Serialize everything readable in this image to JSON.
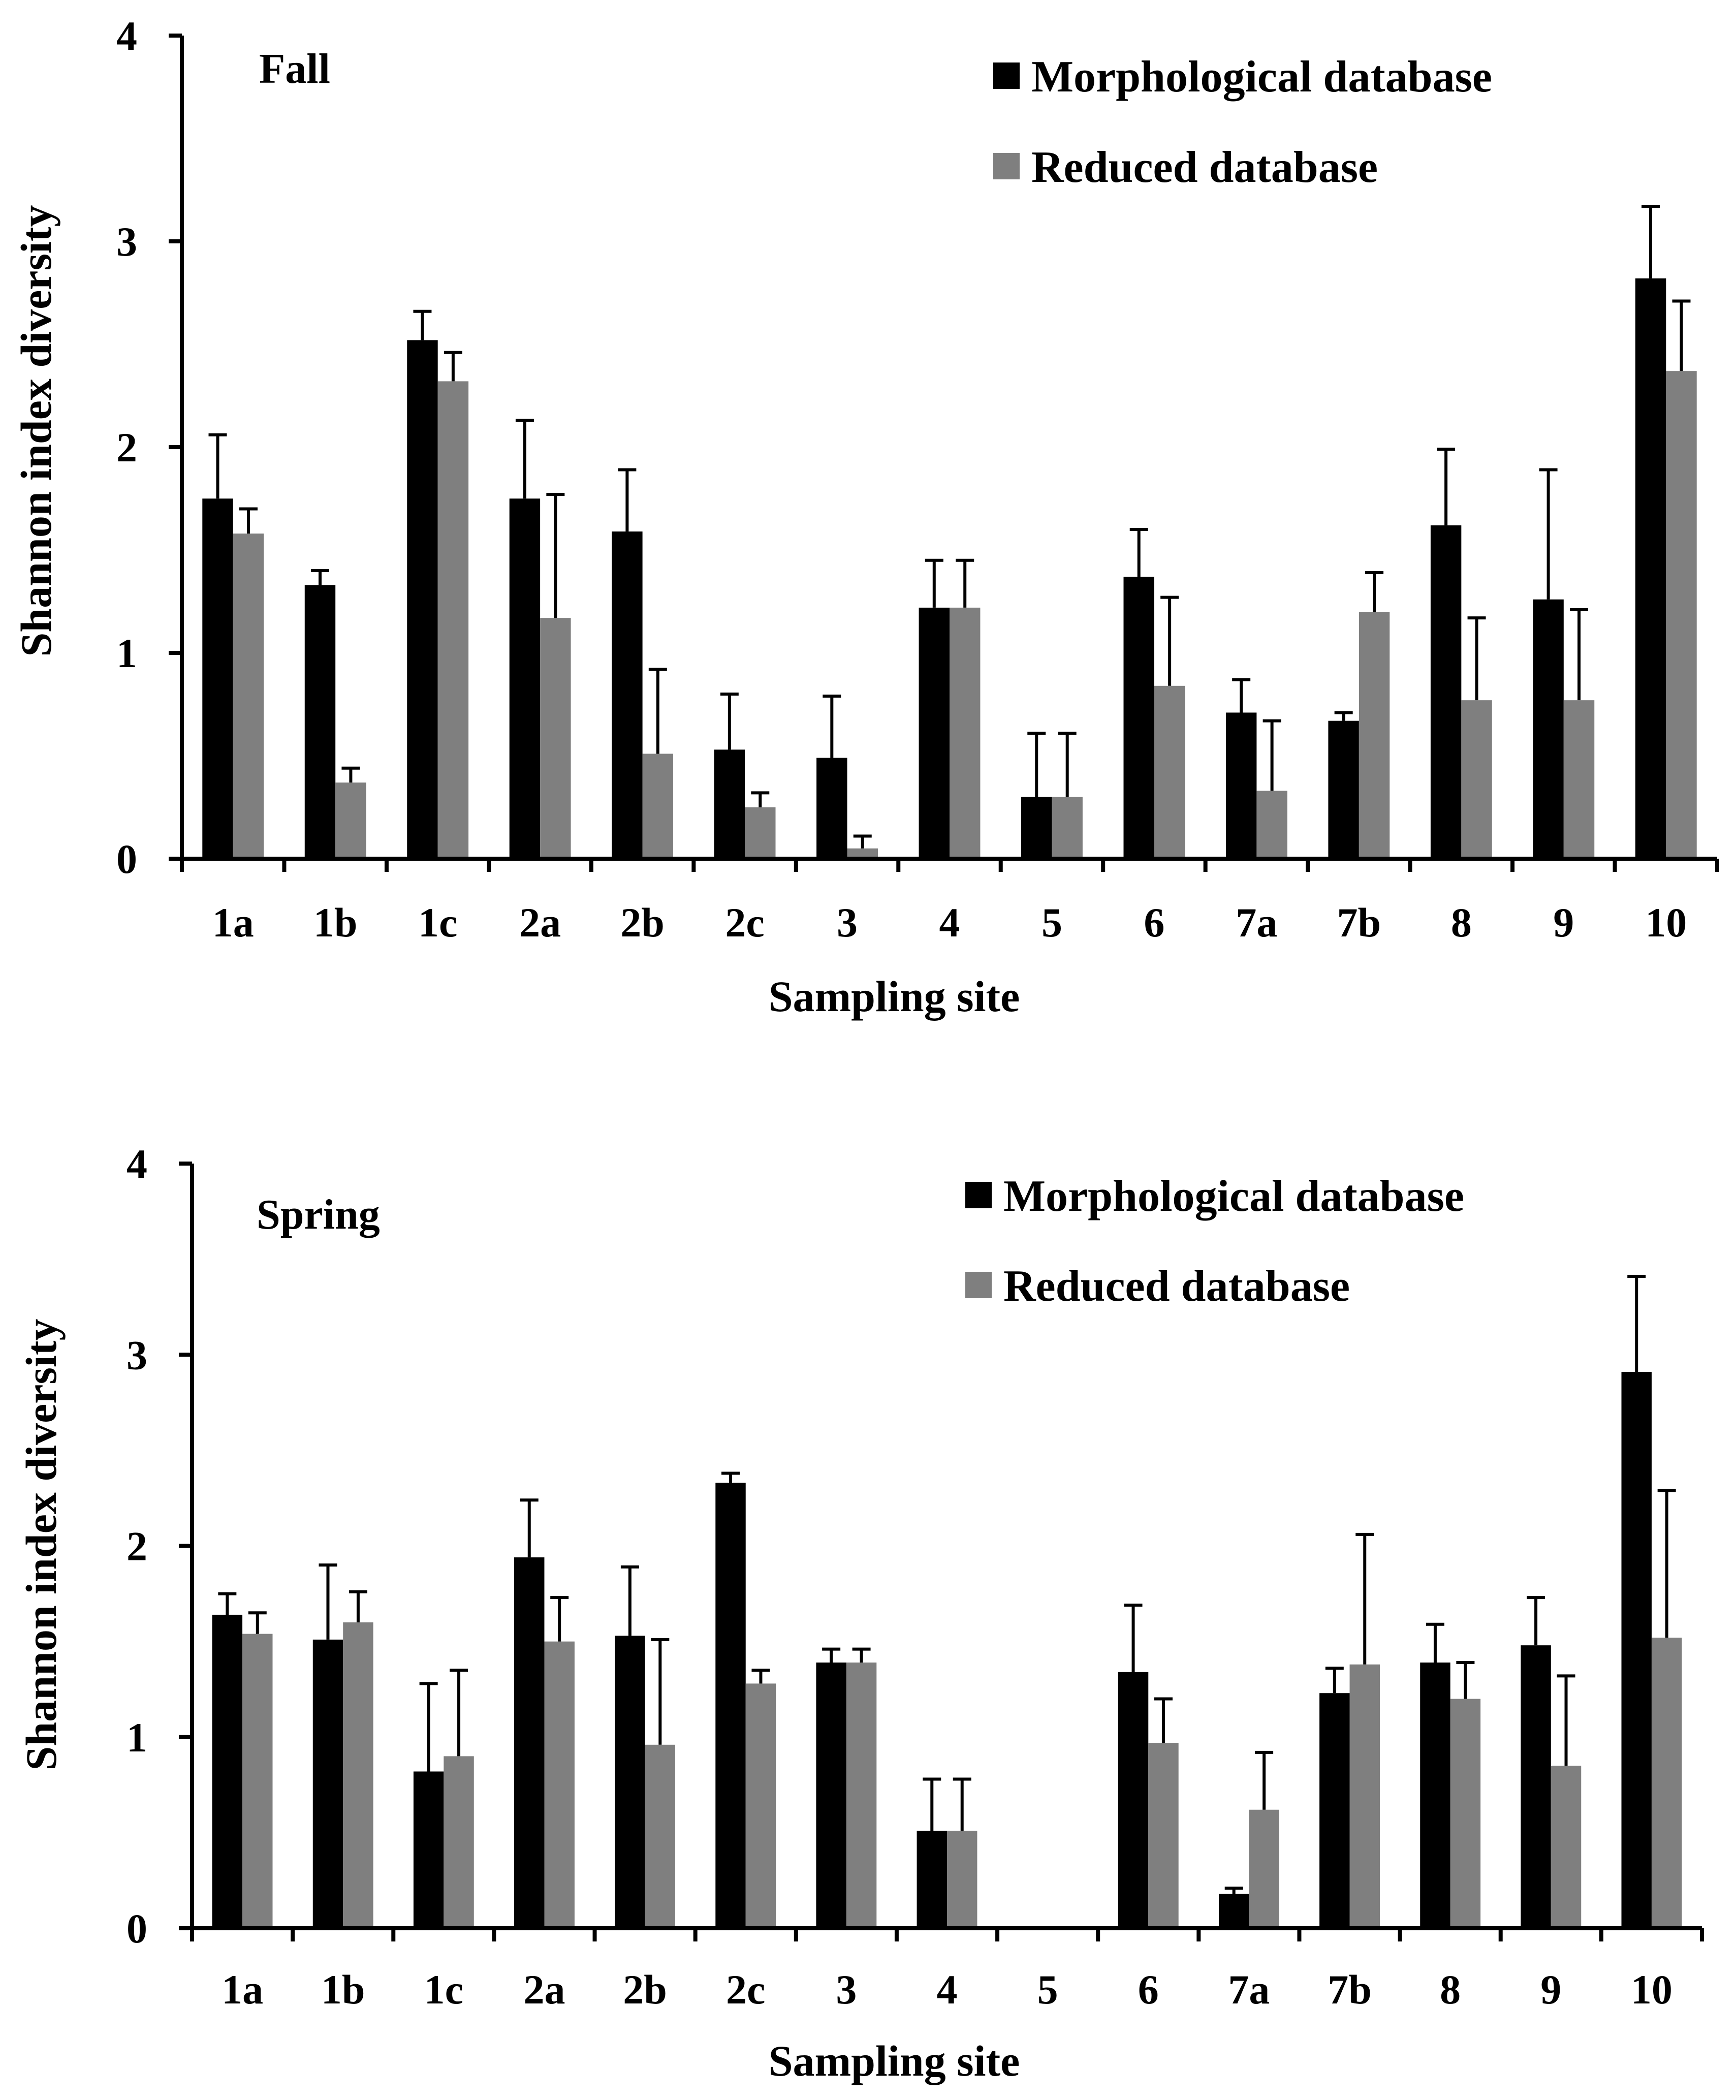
{
  "colors": {
    "morphological": "#000000",
    "reduced": "#7f7f7f",
    "axis": "#000000"
  },
  "chart_data": [
    {
      "type": "bar",
      "title": "Fall",
      "xlabel": "Sampling site",
      "ylabel": "Shannon index diversity",
      "ylim": [
        0,
        4
      ],
      "yticks": [
        "0",
        "1",
        "2",
        "3",
        "4"
      ],
      "legend_position": "top-right",
      "categories": [
        "1a",
        "1b",
        "1c",
        "2a",
        "2b",
        "2c",
        "3",
        "4",
        "5",
        "6",
        "7a",
        "7b",
        "8",
        "9",
        "10"
      ],
      "series": [
        {
          "name": "Morphological database",
          "color": "#000000",
          "values": [
            1.75,
            1.33,
            2.52,
            1.75,
            1.59,
            0.53,
            0.49,
            1.22,
            0.3,
            1.37,
            0.71,
            0.67,
            1.62,
            1.26,
            2.82
          ],
          "errors": [
            0.31,
            0.07,
            0.14,
            0.38,
            0.3,
            0.27,
            0.3,
            0.23,
            0.31,
            0.23,
            0.16,
            0.04,
            0.37,
            0.63,
            0.35
          ]
        },
        {
          "name": "Reduced database",
          "color": "#7f7f7f",
          "values": [
            1.58,
            0.37,
            2.32,
            1.17,
            0.51,
            0.25,
            0.05,
            1.22,
            0.3,
            0.84,
            0.33,
            1.2,
            0.77,
            0.77,
            2.37
          ],
          "errors": [
            0.12,
            0.07,
            0.14,
            0.6,
            0.41,
            0.07,
            0.06,
            0.23,
            0.31,
            0.43,
            0.34,
            0.19,
            0.4,
            0.44,
            0.34
          ]
        }
      ]
    },
    {
      "type": "bar",
      "title": "Spring",
      "xlabel": "Sampling site",
      "ylabel": "Shannon index diversity",
      "ylim": [
        0,
        4
      ],
      "yticks": [
        "0",
        "1",
        "2",
        "3",
        "4"
      ],
      "legend_position": "top-right",
      "categories": [
        "1a",
        "1b",
        "1c",
        "2a",
        "2b",
        "2c",
        "3",
        "4",
        "5",
        "6",
        "7a",
        "7b",
        "8",
        "9",
        "10"
      ],
      "series": [
        {
          "name": "Morphological database",
          "color": "#000000",
          "values": [
            1.64,
            1.51,
            0.82,
            1.94,
            1.53,
            2.33,
            1.39,
            0.51,
            0,
            1.34,
            0.18,
            1.23,
            1.39,
            1.48,
            2.91
          ],
          "errors": [
            0.11,
            0.39,
            0.46,
            0.3,
            0.36,
            0.05,
            0.07,
            0.27,
            0,
            0.35,
            0.03,
            0.13,
            0.2,
            0.25,
            0.5
          ]
        },
        {
          "name": "Reduced database",
          "color": "#7f7f7f",
          "values": [
            1.54,
            1.6,
            0.9,
            1.5,
            0.96,
            1.28,
            1.39,
            0.51,
            0,
            0.97,
            0.62,
            1.38,
            1.2,
            0.85,
            1.52
          ],
          "errors": [
            0.11,
            0.16,
            0.45,
            0.23,
            0.55,
            0.07,
            0.07,
            0.27,
            0,
            0.23,
            0.3,
            0.68,
            0.19,
            0.47,
            0.77
          ]
        }
      ]
    }
  ]
}
